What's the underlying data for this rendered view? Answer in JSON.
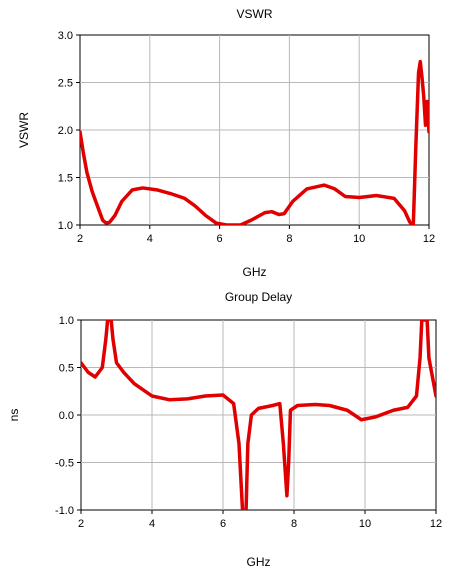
{
  "chart_data": [
    {
      "type": "line",
      "title": "VSWR",
      "xlabel": "GHz",
      "ylabel": "VSWR",
      "xlim": [
        2,
        12
      ],
      "ylim": [
        1.0,
        3.0
      ],
      "grid": true,
      "x_ticks": [
        2,
        4,
        6,
        8,
        10,
        12
      ],
      "x_tick_labels": [
        "2",
        "4",
        "6",
        "8",
        "10",
        "12"
      ],
      "y_ticks": [
        1.0,
        1.5,
        2.0,
        2.5,
        3.0
      ],
      "y_tick_labels": [
        "1.0",
        "1.5",
        "2.0",
        "2.5",
        "3.0"
      ],
      "series": [
        {
          "color": "#e00000",
          "points": [
            [
              2.0,
              1.98
            ],
            [
              2.1,
              1.75
            ],
            [
              2.2,
              1.55
            ],
            [
              2.35,
              1.35
            ],
            [
              2.5,
              1.2
            ],
            [
              2.65,
              1.05
            ],
            [
              2.75,
              1.02
            ],
            [
              2.85,
              1.03
            ],
            [
              3.0,
              1.1
            ],
            [
              3.2,
              1.25
            ],
            [
              3.5,
              1.37
            ],
            [
              3.8,
              1.39
            ],
            [
              4.2,
              1.37
            ],
            [
              4.6,
              1.33
            ],
            [
              5.0,
              1.28
            ],
            [
              5.3,
              1.2
            ],
            [
              5.6,
              1.1
            ],
            [
              5.9,
              1.02
            ],
            [
              6.2,
              1.0
            ],
            [
              6.6,
              1.0
            ],
            [
              6.9,
              1.05
            ],
            [
              7.3,
              1.13
            ],
            [
              7.5,
              1.14
            ],
            [
              7.7,
              1.11
            ],
            [
              7.85,
              1.12
            ],
            [
              8.1,
              1.25
            ],
            [
              8.5,
              1.38
            ],
            [
              9.0,
              1.42
            ],
            [
              9.3,
              1.38
            ],
            [
              9.6,
              1.3
            ],
            [
              10.0,
              1.29
            ],
            [
              10.5,
              1.31
            ],
            [
              11.0,
              1.28
            ],
            [
              11.3,
              1.15
            ],
            [
              11.45,
              1.03
            ],
            [
              11.55,
              1.0
            ],
            [
              11.62,
              1.8
            ],
            [
              11.7,
              2.6
            ],
            [
              11.75,
              2.72
            ],
            [
              11.8,
              2.55
            ],
            [
              11.85,
              2.35
            ],
            [
              11.9,
              2.05
            ],
            [
              11.95,
              2.3
            ],
            [
              12.0,
              1.98
            ]
          ]
        }
      ]
    },
    {
      "type": "line",
      "title": "Group Delay",
      "xlabel": "GHz",
      "ylabel": "ns",
      "xlim": [
        2,
        12
      ],
      "ylim": [
        -1.0,
        1.0
      ],
      "grid": true,
      "x_ticks": [
        2,
        4,
        6,
        8,
        10,
        12
      ],
      "x_tick_labels": [
        "2",
        "4",
        "6",
        "8",
        "10",
        "12"
      ],
      "y_ticks": [
        -1.0,
        -0.5,
        0.0,
        0.5,
        1.0
      ],
      "y_tick_labels": [
        "-1.0",
        "-0.5",
        "0.0",
        "0.5",
        "1.0"
      ],
      "series": [
        {
          "color": "#e00000",
          "points": [
            [
              2.0,
              0.55
            ],
            [
              2.2,
              0.45
            ],
            [
              2.4,
              0.4
            ],
            [
              2.6,
              0.5
            ],
            [
              2.7,
              0.8
            ],
            [
              2.75,
              1.0
            ],
            [
              2.85,
              1.0
            ],
            [
              2.9,
              0.8
            ],
            [
              3.0,
              0.55
            ],
            [
              3.2,
              0.45
            ],
            [
              3.5,
              0.33
            ],
            [
              4.0,
              0.2
            ],
            [
              4.5,
              0.16
            ],
            [
              5.0,
              0.17
            ],
            [
              5.5,
              0.2
            ],
            [
              6.0,
              0.21
            ],
            [
              6.3,
              0.12
            ],
            [
              6.45,
              -0.3
            ],
            [
              6.55,
              -1.0
            ],
            [
              6.65,
              -1.0
            ],
            [
              6.7,
              -0.3
            ],
            [
              6.8,
              0.0
            ],
            [
              7.0,
              0.07
            ],
            [
              7.4,
              0.1
            ],
            [
              7.6,
              0.12
            ],
            [
              7.7,
              -0.3
            ],
            [
              7.8,
              -0.85
            ],
            [
              7.85,
              -0.5
            ],
            [
              7.9,
              0.05
            ],
            [
              8.1,
              0.1
            ],
            [
              8.6,
              0.11
            ],
            [
              9.0,
              0.1
            ],
            [
              9.5,
              0.05
            ],
            [
              9.9,
              -0.05
            ],
            [
              10.3,
              -0.02
            ],
            [
              10.8,
              0.05
            ],
            [
              11.2,
              0.08
            ],
            [
              11.45,
              0.2
            ],
            [
              11.55,
              0.6
            ],
            [
              11.6,
              1.0
            ],
            [
              11.75,
              1.0
            ],
            [
              11.8,
              0.6
            ],
            [
              11.9,
              0.4
            ],
            [
              12.0,
              0.2
            ]
          ]
        }
      ]
    }
  ]
}
